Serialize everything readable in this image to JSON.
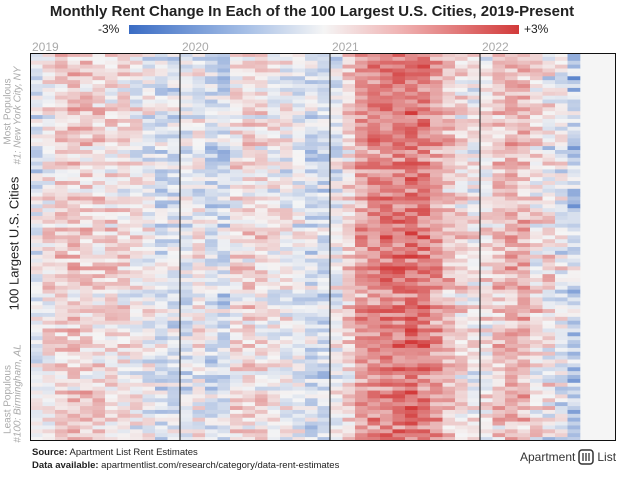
{
  "chart_data": {
    "type": "heatmap",
    "title": "Monthly Rent Change In Each of the 100 Largest U.S. Cities, 2019-Present",
    "colorbar": {
      "min_label": "-3%",
      "max_label": "+3%",
      "min": -3,
      "max": 3,
      "colors": [
        "#3a6cc4",
        "#f5f5f5",
        "#d23a3a"
      ]
    },
    "x_year_labels": [
      "2019",
      "2020",
      "2021",
      "2022"
    ],
    "months_per_year": 12,
    "total_months": 44,
    "rows": 100,
    "ylabel": "100 Largest U.S. Cities",
    "y_top_labels": [
      "Most Populous",
      "#1: New York City, NY"
    ],
    "y_bottom_labels": [
      "Least Populous",
      "#100: Birmingham, AL"
    ],
    "typical_monthly_change_by_month": [
      -0.3,
      0.2,
      0.6,
      0.7,
      0.6,
      0.5,
      0.4,
      0.3,
      0.1,
      -0.1,
      -0.4,
      -0.4,
      -0.3,
      0.0,
      -0.5,
      -0.6,
      0.3,
      0.4,
      0.3,
      0.1,
      0.0,
      -0.2,
      -0.5,
      -0.5,
      -0.2,
      0.5,
      1.3,
      1.6,
      1.8,
      1.9,
      2.1,
      1.9,
      1.4,
      0.8,
      0.4,
      0.1,
      0.2,
      0.7,
      1.0,
      1.0,
      0.8,
      0.6,
      0.2,
      -0.4
    ]
  },
  "footer": {
    "source_label": "Source:",
    "source_text": " Apartment List Rent Estimates",
    "data_label": "Data available:",
    "data_text": " apartmentlist.com/research/category/data-rent-estimates"
  },
  "logo": {
    "text": "Apartment",
    "text2": "List"
  }
}
